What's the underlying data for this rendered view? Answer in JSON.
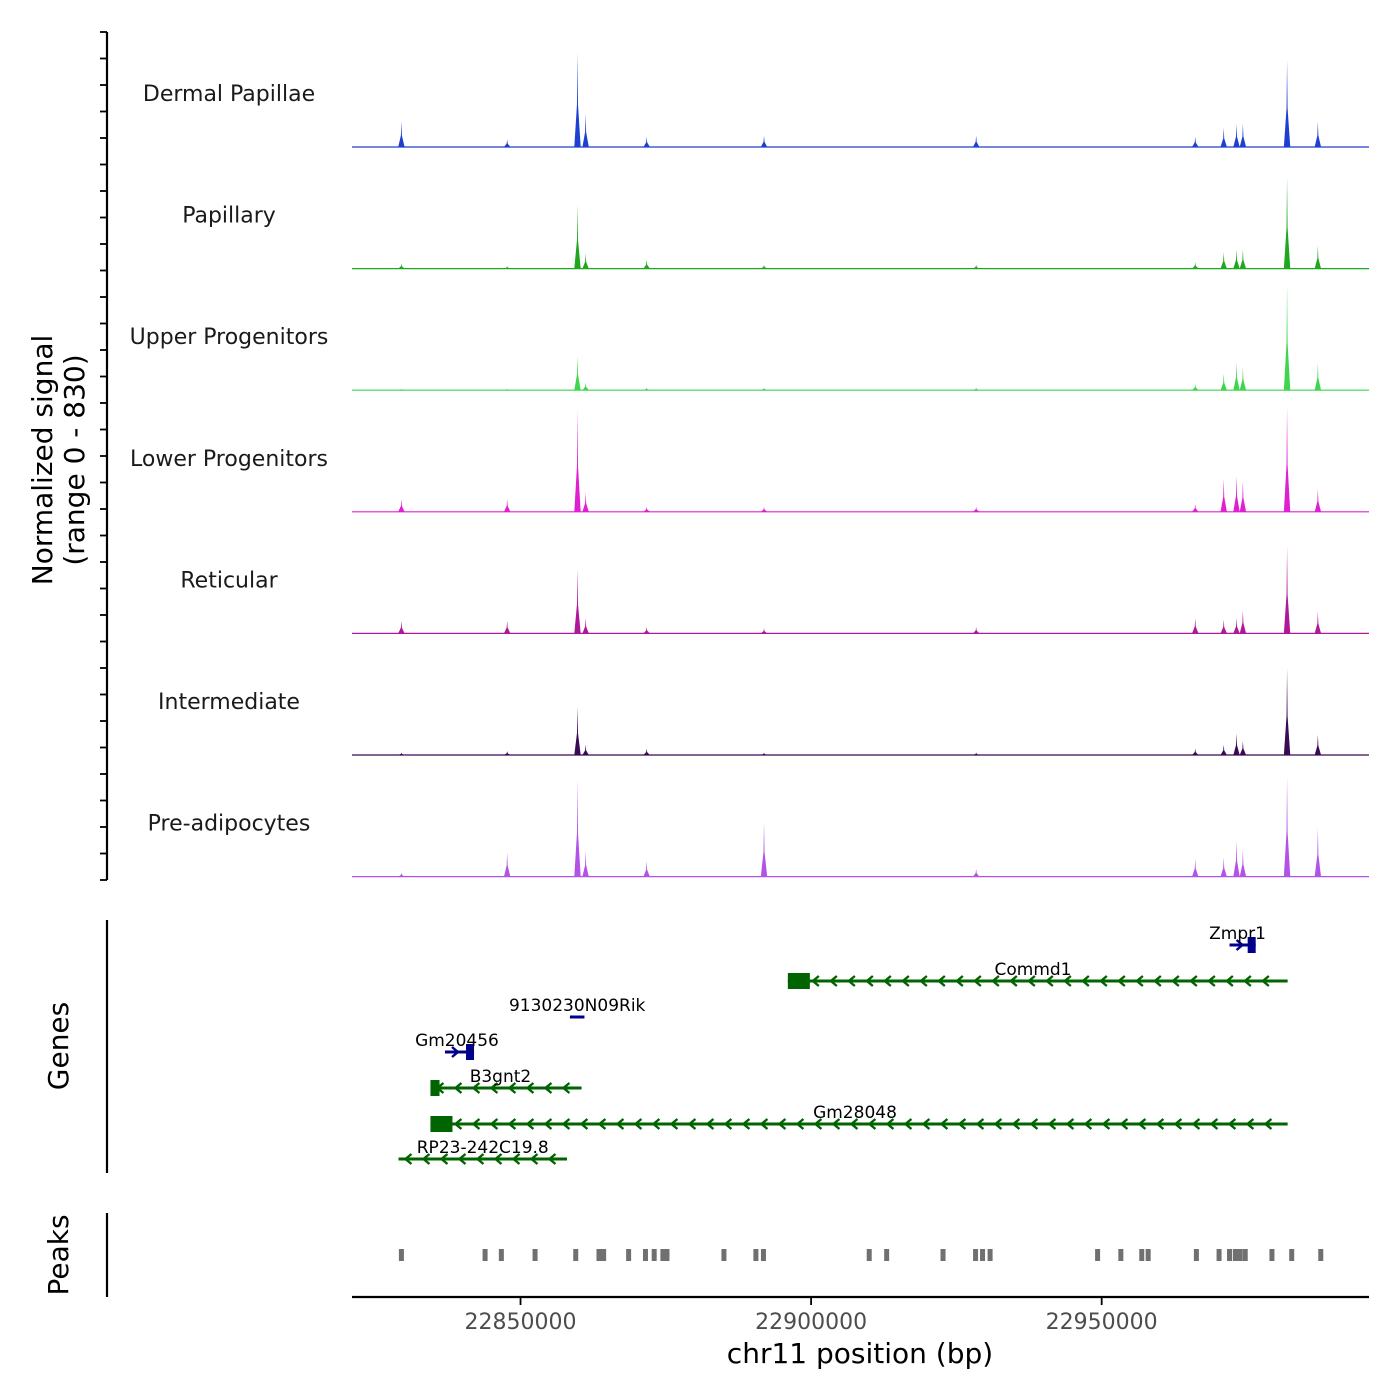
{
  "chart_data": {
    "type": "coverage",
    "chromosome": "chr11",
    "x_range": [
      22821000,
      22996000
    ],
    "xlabel": "chr11 position (bp)",
    "x_ticks": [
      22850000,
      22900000,
      22950000
    ],
    "coverage": {
      "ylabel_line1": "Normalized signal",
      "ylabel_line2": "(range 0 - 830)",
      "y_range": [
        0,
        830
      ],
      "peak_positions": [
        22829500,
        22847700,
        22859800,
        22861200,
        22871700,
        22891900,
        22928400,
        22966100,
        22971000,
        22973200,
        22974300,
        22981900,
        22987200
      ],
      "tracks": [
        {
          "name": "Dermal Papillae",
          "color": "#1f3fd0",
          "peak_heights": [
            200,
            60,
            740,
            260,
            80,
            90,
            90,
            80,
            150,
            180,
            180,
            680,
            200
          ]
        },
        {
          "name": "Papillary",
          "color": "#1ea81e",
          "peak_heights": [
            40,
            20,
            500,
            120,
            70,
            30,
            30,
            50,
            130,
            150,
            150,
            720,
            180
          ]
        },
        {
          "name": "Upper Progenitors",
          "color": "#3dd64c",
          "peak_heights": [
            10,
            10,
            270,
            60,
            20,
            20,
            20,
            50,
            130,
            220,
            180,
            830,
            210
          ]
        },
        {
          "name": "Lower Progenitors",
          "color": "#e020d0",
          "peak_heights": [
            100,
            100,
            800,
            150,
            40,
            40,
            40,
            60,
            260,
            280,
            240,
            820,
            180
          ]
        },
        {
          "name": "Reticular",
          "color": "#b0189a",
          "peak_heights": [
            100,
            100,
            510,
            120,
            50,
            40,
            50,
            120,
            110,
            120,
            180,
            680,
            170
          ]
        },
        {
          "name": "Intermediate",
          "color": "#3a0a55",
          "peak_heights": [
            20,
            30,
            380,
            80,
            50,
            20,
            20,
            50,
            80,
            170,
            110,
            680,
            160
          ]
        },
        {
          "name": "Pre-adipocytes",
          "color": "#b252e6",
          "peak_heights": [
            30,
            190,
            760,
            200,
            120,
            430,
            60,
            140,
            150,
            280,
            210,
            780,
            380
          ]
        }
      ]
    },
    "genes_panel": {
      "label": "Genes",
      "genes": [
        {
          "name": "Zmpr1",
          "start": 22972000,
          "end": 22976500,
          "strand": "+",
          "row": 0,
          "color": "#00008b"
        },
        {
          "name": "Commd1",
          "start": 22896000,
          "end": 22982000,
          "strand": "-",
          "row": 1,
          "color": "#006400"
        },
        {
          "name": "9130230N09Rik",
          "start": 22858500,
          "end": 22861000,
          "strand": "+",
          "row": 2,
          "color": "#00008b"
        },
        {
          "name": "Gm20456",
          "start": 22837000,
          "end": 22842000,
          "strand": "+",
          "row": 3,
          "color": "#00008b"
        },
        {
          "name": "B3gnt2",
          "start": 22834500,
          "end": 22860500,
          "strand": "-",
          "row": 4,
          "color": "#006400"
        },
        {
          "name": "Gm28048",
          "start": 22834500,
          "end": 22982000,
          "strand": "-",
          "row": 5,
          "color": "#006400"
        },
        {
          "name": "RP23-242C19.8",
          "start": 22829000,
          "end": 22858000,
          "strand": "-",
          "row": 6,
          "color": "#006400"
        }
      ]
    },
    "peaks_panel": {
      "label": "Peaks",
      "color": "#707070",
      "positions": [
        22829500,
        22843900,
        22846700,
        22852500,
        22859500,
        22863500,
        22864300,
        22868600,
        22871500,
        22873000,
        22874500,
        22875200,
        22885000,
        22890500,
        22891800,
        22910000,
        22913000,
        22922700,
        22928300,
        22929500,
        22930800,
        22949300,
        22953300,
        22956900,
        22958000,
        22966300,
        22970200,
        22972000,
        22973000,
        22973800,
        22974700,
        22979300,
        22982700,
        22987700
      ]
    }
  }
}
